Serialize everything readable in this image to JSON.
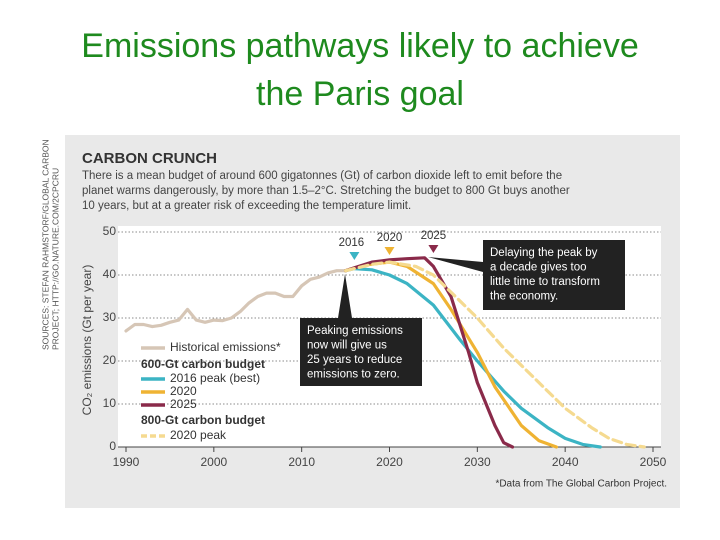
{
  "slide_title": [
    "Emissions pathways likely to achieve",
    "the Paris goal"
  ],
  "source_note": [
    "SOURCES: STEFAN RAHMSTORF/GLOBAL CARBON",
    "PROJECT; HTTP://GO.NATURE.COM/2CPCRU"
  ],
  "chart_data": {
    "type": "line",
    "title": "CARBON CRUNCH",
    "subtitle": [
      "There is a mean budget of around 600 gigatonnes (Gt) of carbon dioxide left to emit before the",
      "planet warms dangerously, by more than 1.5–2°C. Stretching the budget to 800 Gt buys another",
      "10 years, but at a greater risk of exceeding the temperature limit."
    ],
    "y_label": "CO₂ emissions (Gt per year)",
    "footnote": "*Data from The Global Carbon Project.",
    "xlim": [
      1990,
      2050
    ],
    "xticks": [
      1990,
      2000,
      2010,
      2020,
      2030,
      2040,
      2050
    ],
    "ylim": [
      0,
      50
    ],
    "yticks": [
      0,
      10,
      20,
      30,
      40,
      50
    ],
    "grid": true,
    "legend_headings": [
      "600-Gt carbon budget",
      "800-Gt carbon budget"
    ],
    "series": [
      {
        "name": "Historical emissions*",
        "color": "#d6c6b6",
        "x": [
          1990,
          1991,
          1992,
          1993,
          1994,
          1995,
          1996,
          1997,
          1998,
          1999,
          2000,
          2001,
          2002,
          2003,
          2004,
          2005,
          2006,
          2007,
          2008,
          2009,
          2010,
          2011,
          2012,
          2013,
          2014,
          2015
        ],
        "values": [
          27,
          28.5,
          28.5,
          28,
          28.3,
          29,
          29.5,
          32,
          29.5,
          29,
          29.5,
          29.4,
          30,
          31.5,
          33.5,
          35,
          35.8,
          35.8,
          35,
          35,
          37.5,
          39,
          39.5,
          40.5,
          41,
          41
        ]
      },
      {
        "name": "2016 peak (best)",
        "color": "#3cb4c4",
        "x": [
          2015,
          2016,
          2018,
          2020,
          2022,
          2025,
          2028,
          2030,
          2033,
          2035,
          2038,
          2040,
          2042,
          2044
        ],
        "values": [
          41,
          41.5,
          41.2,
          40,
          38,
          33,
          25,
          20,
          13,
          9,
          4.5,
          2,
          0.6,
          0
        ]
      },
      {
        "name": "2020",
        "color": "#efb333",
        "x": [
          2015,
          2017,
          2020,
          2022,
          2025,
          2027,
          2030,
          2032,
          2035,
          2037,
          2039
        ],
        "values": [
          41,
          42.3,
          43,
          42,
          38,
          32,
          22,
          14,
          5,
          1.5,
          0
        ]
      },
      {
        "name": "2025",
        "color": "#8a2a4a",
        "x": [
          2015,
          2018,
          2020,
          2022,
          2024,
          2025,
          2027,
          2029,
          2030,
          2032,
          2033,
          2034
        ],
        "values": [
          41,
          43,
          43.5,
          43.8,
          44,
          42,
          35,
          22,
          15,
          5,
          1,
          0
        ]
      },
      {
        "name": "2020 peak",
        "color": "#f5da90",
        "dashed": true,
        "x": [
          2015,
          2018,
          2020,
          2023,
          2025,
          2028,
          2030,
          2033,
          2035,
          2038,
          2040,
          2043,
          2045,
          2047,
          2049
        ],
        "values": [
          41,
          42.5,
          43,
          42,
          40,
          34,
          30,
          23,
          19,
          13,
          9,
          4.5,
          2,
          0.6,
          0
        ]
      }
    ],
    "peak_markers": [
      {
        "label": "2016",
        "x": 2016,
        "color": "#3cb4c4"
      },
      {
        "label": "2020",
        "x": 2020,
        "color": "#efb333"
      },
      {
        "label": "2025",
        "x": 2025,
        "color": "#8a2a4a"
      }
    ],
    "annotations": [
      {
        "lines": [
          "Delaying the peak by",
          "a decade gives too",
          "little time to transform",
          "the economy."
        ]
      },
      {
        "lines": [
          "Peaking emissions",
          "now will give us",
          "25 years to reduce",
          "emissions to zero."
        ]
      }
    ]
  }
}
